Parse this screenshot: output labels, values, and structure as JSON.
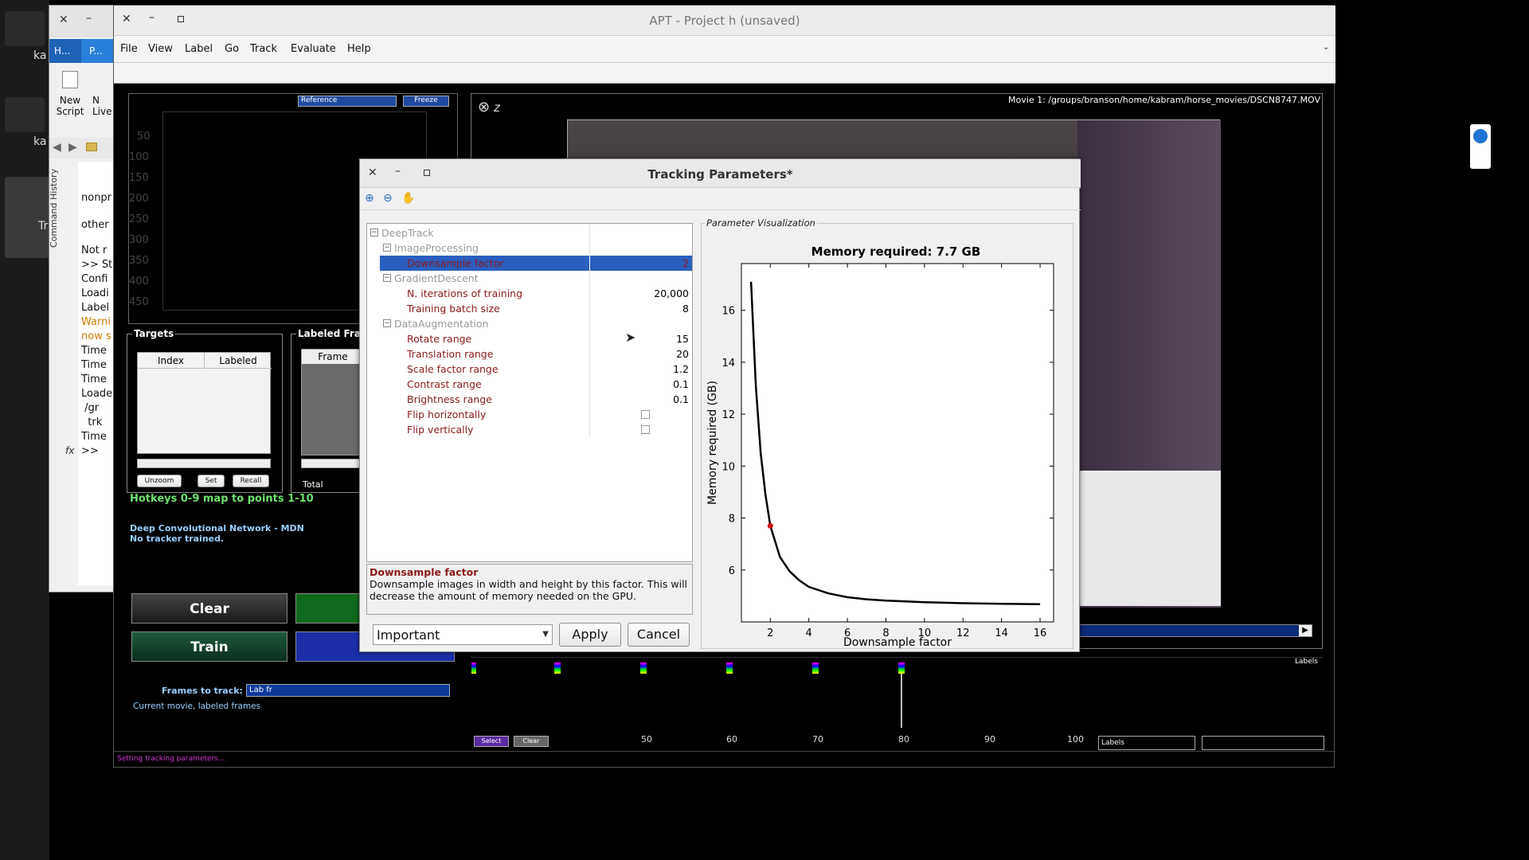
{
  "desktop": {
    "icon_labels": [
      "ka",
      "ka",
      "Tr"
    ]
  },
  "matlab": {
    "tabs": [
      "H...",
      "P..."
    ],
    "toolbar": {
      "new_script": "New\nScript",
      "new_live": "N\nLive"
    },
    "command_history_label": "Command History",
    "console_lines": [
      "nonpr",
      "other",
      "Not r",
      ">> St",
      "Confi",
      "Loadi",
      "Label",
      "Warni",
      "now s",
      "Time",
      "Time",
      "Time",
      "Loade",
      " /gr",
      "  trk",
      "Time",
      ">>"
    ]
  },
  "apt": {
    "title": "APT - Project h (unsaved)",
    "menu": [
      "File",
      "View",
      "Label",
      "Go",
      "Track",
      "Evaluate",
      "Help"
    ],
    "reference_select": "Reference",
    "freeze_button": "Freeze",
    "y_ticks": [
      "50",
      "100",
      "150",
      "200",
      "250",
      "300",
      "350",
      "400",
      "450"
    ],
    "movie_label": "Movie 1: /groups/branson/home/kabram/horse_movies/DSCN8747.MOV",
    "targets_title": "Targets",
    "targets_columns": [
      "Index",
      "Labeled"
    ],
    "unzoom_button": "Unzoom",
    "set_button": "Set",
    "recall_button": "Recall",
    "labeled_frames_title": "Labeled Fran",
    "frame_column": "Frame",
    "total_label": "Total",
    "hotkeys_text": "Hotkeys 0-9 map to points 1-10",
    "tracker_name": "Deep Convolutional Network - MDN",
    "tracker_status": "No tracker trained.",
    "clear_button": "Clear",
    "train_button": "Train",
    "frames_to_track_label": "Frames to track:",
    "frames_to_track_value": "Lab fr",
    "frames_to_track_desc": "Current movie, labeled frames",
    "timeline_ticks": [
      "50",
      "60",
      "70",
      "80",
      "90",
      "100"
    ],
    "timeline_select": "Select",
    "timeline_clear": "Clear",
    "labels_caption": "Labels",
    "labels_box": "Labels",
    "status_text": "Setting tracking parameters..."
  },
  "dialog": {
    "title": "Tracking Parameters*",
    "tree": [
      {
        "label": "DeepTrack",
        "level": 0,
        "type": "group"
      },
      {
        "label": "ImageProcessing",
        "level": 1,
        "type": "group"
      },
      {
        "label": "Downsample factor",
        "level": 2,
        "type": "leaf",
        "value": "2",
        "selected": true
      },
      {
        "label": "GradientDescent",
        "level": 1,
        "type": "group"
      },
      {
        "label": "N. iterations of training",
        "level": 2,
        "type": "leaf",
        "value": "20,000"
      },
      {
        "label": "Training batch size",
        "level": 2,
        "type": "leaf",
        "value": "8"
      },
      {
        "label": "DataAugmentation",
        "level": 1,
        "type": "group"
      },
      {
        "label": "Rotate range",
        "level": 2,
        "type": "leaf",
        "value": "15"
      },
      {
        "label": "Translation range",
        "level": 2,
        "type": "leaf",
        "value": "20"
      },
      {
        "label": "Scale factor range",
        "level": 2,
        "type": "leaf",
        "value": "1.2"
      },
      {
        "label": "Contrast range",
        "level": 2,
        "type": "leaf",
        "value": "0.1"
      },
      {
        "label": "Brightness range",
        "level": 2,
        "type": "leaf",
        "value": "0.1"
      },
      {
        "label": "Flip horizontally",
        "level": 2,
        "type": "checkbox",
        "checked": false
      },
      {
        "label": "Flip vertically",
        "level": 2,
        "type": "checkbox",
        "checked": false
      }
    ],
    "desc_title": "Downsample factor",
    "desc_text": "Downsample images in width and height by this factor. This will decrease the amount of memory needed on the GPU.",
    "filter_value": "Important",
    "apply_button": "Apply",
    "cancel_button": "Cancel",
    "viz_title": "Parameter Visualization"
  },
  "chart_data": {
    "type": "line",
    "title": "Memory required: 7.7 GB",
    "xlabel": "Downsample factor",
    "ylabel": "Memory required (GB)",
    "xlim": [
      0.5,
      16.7
    ],
    "ylim": [
      4.0,
      17.8
    ],
    "xticks": [
      2,
      4,
      6,
      8,
      10,
      12,
      14,
      16
    ],
    "yticks": [
      6,
      8,
      10,
      12,
      14,
      16
    ],
    "x": [
      1.0,
      1.25,
      1.5,
      1.75,
      2.0,
      2.5,
      3.0,
      3.5,
      4.0,
      5.0,
      6.0,
      7.0,
      8.0,
      10.0,
      12.0,
      14.0,
      16.0
    ],
    "y": [
      17.1,
      13.1,
      10.5,
      8.9,
      7.7,
      6.5,
      5.95,
      5.6,
      5.35,
      5.1,
      4.95,
      4.87,
      4.82,
      4.76,
      4.72,
      4.7,
      4.68
    ],
    "marker": {
      "x": 2,
      "y": 7.7,
      "color": "#cc1111"
    }
  }
}
